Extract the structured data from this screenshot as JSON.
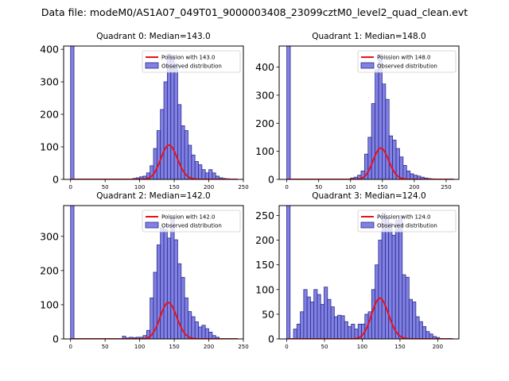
{
  "figure_title": "Data file: modeM0/AS1A07_049T01_9000003408_23099cztM0_level2_quad_clean.evt",
  "legend_labels": {
    "observed": "Observed distribution"
  },
  "colors": {
    "hist_fill": "#6b6bdf",
    "hist_edge": "#2c2c8a",
    "poisson": "#e8111b",
    "axis": "#000000"
  },
  "chart_data": [
    {
      "type": "bar",
      "title": "Quadrant 0: Median=143.0",
      "poisson_label": "Poission with 143.0",
      "poisson_mean": 143.0,
      "poisson_scale": 3160,
      "xlim": [
        -10,
        250
      ],
      "ylim": [
        0,
        410
      ],
      "xticks": [
        0,
        50,
        100,
        150,
        200,
        250
      ],
      "yticks": [
        0,
        100,
        200,
        300,
        400
      ],
      "bin_width": 5,
      "bins": [
        {
          "x": 0,
          "y": 410
        },
        {
          "x": 90,
          "y": 3
        },
        {
          "x": 95,
          "y": 5
        },
        {
          "x": 100,
          "y": 8
        },
        {
          "x": 105,
          "y": 10
        },
        {
          "x": 110,
          "y": 20
        },
        {
          "x": 115,
          "y": 42
        },
        {
          "x": 120,
          "y": 95
        },
        {
          "x": 125,
          "y": 150
        },
        {
          "x": 130,
          "y": 215
        },
        {
          "x": 135,
          "y": 300
        },
        {
          "x": 140,
          "y": 385
        },
        {
          "x": 145,
          "y": 380
        },
        {
          "x": 150,
          "y": 355
        },
        {
          "x": 155,
          "y": 230
        },
        {
          "x": 160,
          "y": 165
        },
        {
          "x": 165,
          "y": 150
        },
        {
          "x": 170,
          "y": 105
        },
        {
          "x": 175,
          "y": 75
        },
        {
          "x": 180,
          "y": 55
        },
        {
          "x": 185,
          "y": 45
        },
        {
          "x": 190,
          "y": 30
        },
        {
          "x": 195,
          "y": 20
        },
        {
          "x": 200,
          "y": 30
        },
        {
          "x": 205,
          "y": 20
        },
        {
          "x": 210,
          "y": 10
        },
        {
          "x": 215,
          "y": 5
        },
        {
          "x": 220,
          "y": 3
        },
        {
          "x": 225,
          "y": 2
        }
      ]
    },
    {
      "type": "bar",
      "title": "Quadrant 1: Median=148.0",
      "poisson_label": "Poission with 148.0",
      "poisson_mean": 148.0,
      "poisson_scale": 3400,
      "xlim": [
        -12,
        270
      ],
      "ylim": [
        0,
        475
      ],
      "xticks": [
        0,
        50,
        100,
        150,
        200,
        250
      ],
      "yticks": [
        0,
        100,
        200,
        300,
        400
      ],
      "bin_width": 5.5,
      "bins": [
        {
          "x": 0,
          "y": 475
        },
        {
          "x": 100,
          "y": 5
        },
        {
          "x": 105.5,
          "y": 8
        },
        {
          "x": 111,
          "y": 15
        },
        {
          "x": 116.5,
          "y": 30
        },
        {
          "x": 122,
          "y": 90
        },
        {
          "x": 127.5,
          "y": 150
        },
        {
          "x": 133,
          "y": 270
        },
        {
          "x": 138.5,
          "y": 390
        },
        {
          "x": 144,
          "y": 445
        },
        {
          "x": 149.5,
          "y": 340
        },
        {
          "x": 155,
          "y": 285
        },
        {
          "x": 160.5,
          "y": 155
        },
        {
          "x": 166,
          "y": 140
        },
        {
          "x": 171.5,
          "y": 110
        },
        {
          "x": 177,
          "y": 80
        },
        {
          "x": 182.5,
          "y": 50
        },
        {
          "x": 188,
          "y": 30
        },
        {
          "x": 193.5,
          "y": 20
        },
        {
          "x": 199,
          "y": 15
        },
        {
          "x": 204.5,
          "y": 12
        },
        {
          "x": 210,
          "y": 8
        },
        {
          "x": 215.5,
          "y": 5
        },
        {
          "x": 221,
          "y": 3
        },
        {
          "x": 226.5,
          "y": 2
        }
      ]
    },
    {
      "type": "bar",
      "title": "Quadrant 2: Median=142.0",
      "poisson_label": "Poission with 142.0",
      "poisson_mean": 142.0,
      "poisson_scale": 3175,
      "xlim": [
        -10,
        250
      ],
      "ylim": [
        0,
        390
      ],
      "xticks": [
        0,
        50,
        100,
        150,
        200,
        250
      ],
      "yticks": [
        0,
        100,
        200,
        300
      ],
      "bin_width": 5,
      "bins": [
        {
          "x": 0,
          "y": 390
        },
        {
          "x": 75,
          "y": 8
        },
        {
          "x": 80,
          "y": 3
        },
        {
          "x": 85,
          "y": 5
        },
        {
          "x": 90,
          "y": 4
        },
        {
          "x": 95,
          "y": 5
        },
        {
          "x": 100,
          "y": 5
        },
        {
          "x": 105,
          "y": 10
        },
        {
          "x": 110,
          "y": 25
        },
        {
          "x": 115,
          "y": 120
        },
        {
          "x": 120,
          "y": 195
        },
        {
          "x": 125,
          "y": 275
        },
        {
          "x": 130,
          "y": 325
        },
        {
          "x": 135,
          "y": 320
        },
        {
          "x": 140,
          "y": 295
        },
        {
          "x": 145,
          "y": 355
        },
        {
          "x": 150,
          "y": 290
        },
        {
          "x": 155,
          "y": 220
        },
        {
          "x": 160,
          "y": 180
        },
        {
          "x": 165,
          "y": 120
        },
        {
          "x": 170,
          "y": 80
        },
        {
          "x": 175,
          "y": 65
        },
        {
          "x": 180,
          "y": 50
        },
        {
          "x": 185,
          "y": 35
        },
        {
          "x": 190,
          "y": 40
        },
        {
          "x": 195,
          "y": 30
        },
        {
          "x": 200,
          "y": 20
        },
        {
          "x": 205,
          "y": 10
        },
        {
          "x": 210,
          "y": 5
        }
      ]
    },
    {
      "type": "bar",
      "title": "Quadrant 3: Median=124.0",
      "poisson_label": "Poission with 124.0",
      "poisson_mean": 124.0,
      "poisson_scale": 2300,
      "xlim": [
        -10,
        228
      ],
      "ylim": [
        0,
        270
      ],
      "xticks": [
        0,
        50,
        100,
        150,
        200
      ],
      "yticks": [
        0,
        50,
        100,
        150,
        200,
        250
      ],
      "bin_width": 4.5,
      "bins": [
        {
          "x": 0,
          "y": 270
        },
        {
          "x": 9,
          "y": 20
        },
        {
          "x": 13.5,
          "y": 30
        },
        {
          "x": 18,
          "y": 55
        },
        {
          "x": 22.5,
          "y": 100
        },
        {
          "x": 27,
          "y": 85
        },
        {
          "x": 31.5,
          "y": 75
        },
        {
          "x": 36,
          "y": 100
        },
        {
          "x": 40.5,
          "y": 90
        },
        {
          "x": 45,
          "y": 70
        },
        {
          "x": 49.5,
          "y": 105
        },
        {
          "x": 54,
          "y": 80
        },
        {
          "x": 58.5,
          "y": 65
        },
        {
          "x": 63,
          "y": 45
        },
        {
          "x": 67.5,
          "y": 48
        },
        {
          "x": 72,
          "y": 47
        },
        {
          "x": 76.5,
          "y": 35
        },
        {
          "x": 81,
          "y": 25
        },
        {
          "x": 85.5,
          "y": 30
        },
        {
          "x": 90,
          "y": 20
        },
        {
          "x": 94.5,
          "y": 30
        },
        {
          "x": 99,
          "y": 30
        },
        {
          "x": 103.5,
          "y": 50
        },
        {
          "x": 108,
          "y": 55
        },
        {
          "x": 112.5,
          "y": 100
        },
        {
          "x": 117,
          "y": 150
        },
        {
          "x": 121.5,
          "y": 200
        },
        {
          "x": 126,
          "y": 255
        },
        {
          "x": 130.5,
          "y": 245
        },
        {
          "x": 135,
          "y": 235
        },
        {
          "x": 139.5,
          "y": 210
        },
        {
          "x": 144,
          "y": 240
        },
        {
          "x": 148.5,
          "y": 250
        },
        {
          "x": 153,
          "y": 130
        },
        {
          "x": 157.5,
          "y": 125
        },
        {
          "x": 162,
          "y": 80
        },
        {
          "x": 166.5,
          "y": 75
        },
        {
          "x": 171,
          "y": 45
        },
        {
          "x": 175.5,
          "y": 35
        },
        {
          "x": 180,
          "y": 25
        },
        {
          "x": 184.5,
          "y": 15
        },
        {
          "x": 189,
          "y": 10
        },
        {
          "x": 193.5,
          "y": 5
        },
        {
          "x": 198,
          "y": 3
        },
        {
          "x": 202.5,
          "y": 1
        }
      ]
    }
  ]
}
